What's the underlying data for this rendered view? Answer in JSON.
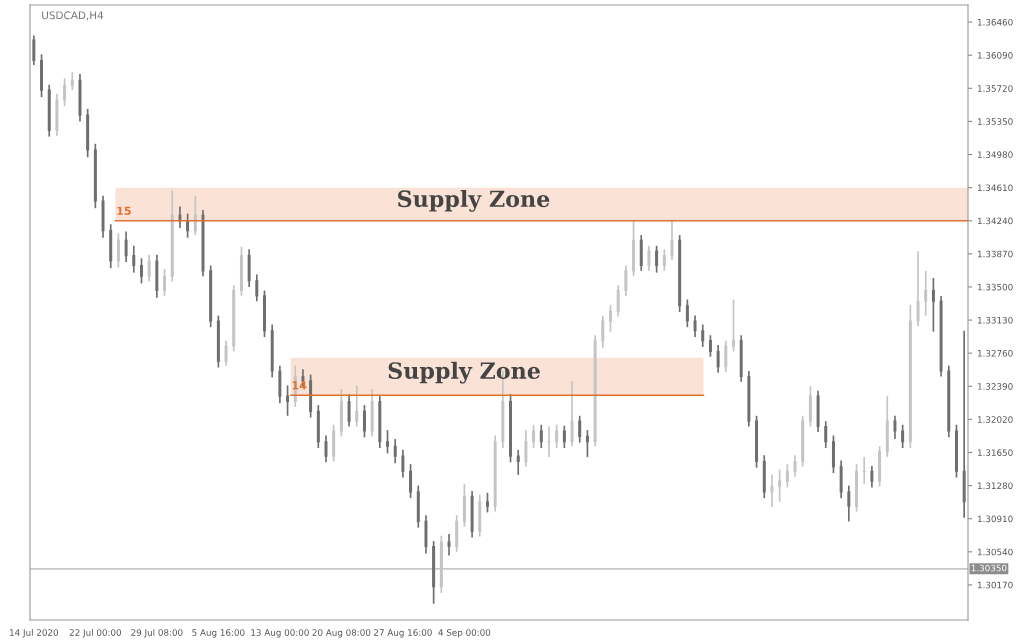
{
  "chart_data": {
    "type": "candlestick",
    "title": "USDCAD,H4",
    "categories": [
      "14 Jul 2020",
      null,
      null,
      null,
      null,
      null,
      null,
      null,
      "22 Jul 00:00",
      null,
      null,
      null,
      null,
      null,
      null,
      null,
      "29 Jul 08:00",
      null,
      null,
      null,
      null,
      null,
      null,
      null,
      "5 Aug 16:00",
      null,
      null,
      null,
      null,
      null,
      null,
      null,
      "13 Aug 00:00",
      null,
      null,
      null,
      null,
      null,
      null,
      null,
      "20 Aug 08:00",
      null,
      null,
      null,
      null,
      null,
      null,
      null,
      "27 Aug 16:00",
      null,
      null,
      null,
      null,
      null,
      null,
      null,
      "4 Sep 00:00",
      null,
      null,
      null,
      null,
      null,
      null,
      null,
      null,
      null,
      null,
      null,
      null,
      null,
      null,
      null,
      null,
      null,
      null,
      null,
      null,
      null,
      null,
      null,
      null,
      null,
      null,
      null,
      null,
      null,
      null,
      null,
      null,
      null,
      null,
      null,
      null,
      null,
      null,
      null,
      null,
      null,
      null,
      null,
      null,
      null,
      null,
      null,
      null,
      null,
      null,
      null,
      null,
      null,
      null,
      null,
      null,
      null,
      null,
      null,
      null,
      null,
      null,
      null,
      null,
      null
    ],
    "ohlc": [
      [
        1.3626,
        1.3631,
        1.3598,
        1.3603
      ],
      [
        1.3603,
        1.361,
        1.3562,
        1.357
      ],
      [
        1.357,
        1.3576,
        1.3518,
        1.3525
      ],
      [
        1.3525,
        1.3566,
        1.3519,
        1.3559
      ],
      [
        1.3559,
        1.3583,
        1.3552,
        1.3575
      ],
      [
        1.3575,
        1.359,
        1.357,
        1.3581
      ],
      [
        1.3581,
        1.3588,
        1.3535,
        1.3542
      ],
      [
        1.3542,
        1.3549,
        1.3495,
        1.3503
      ],
      [
        1.3503,
        1.351,
        1.3438,
        1.3446
      ],
      [
        1.3446,
        1.3452,
        1.3405,
        1.3413
      ],
      [
        1.3413,
        1.342,
        1.3371,
        1.3379
      ],
      [
        1.3379,
        1.341,
        1.3372,
        1.3402
      ],
      [
        1.3402,
        1.3412,
        1.3378,
        1.3385
      ],
      [
        1.3385,
        1.3396,
        1.3366,
        1.3374
      ],
      [
        1.3374,
        1.3382,
        1.3354,
        1.3362
      ],
      [
        1.3362,
        1.3386,
        1.3356,
        1.3379
      ],
      [
        1.3379,
        1.3386,
        1.3338,
        1.3346
      ],
      [
        1.3346,
        1.337,
        1.334,
        1.3362
      ],
      [
        1.3362,
        1.3458,
        1.3356,
        1.343
      ],
      [
        1.343,
        1.344,
        1.3416,
        1.3424
      ],
      [
        1.3424,
        1.3432,
        1.3405,
        1.3413
      ],
      [
        1.3413,
        1.3452,
        1.3408,
        1.343
      ],
      [
        1.343,
        1.3436,
        1.3362,
        1.3368
      ],
      [
        1.3368,
        1.3374,
        1.3305,
        1.3312
      ],
      [
        1.3312,
        1.3318,
        1.326,
        1.3267
      ],
      [
        1.3267,
        1.329,
        1.3262,
        1.3284
      ],
      [
        1.3284,
        1.3352,
        1.3278,
        1.3346
      ],
      [
        1.3346,
        1.3395,
        1.334,
        1.3385
      ],
      [
        1.3385,
        1.3392,
        1.335,
        1.3357
      ],
      [
        1.3357,
        1.3364,
        1.3334,
        1.334
      ],
      [
        1.334,
        1.3346,
        1.3294,
        1.3301
      ],
      [
        1.3301,
        1.3308,
        1.3249,
        1.3256
      ],
      [
        1.3256,
        1.3262,
        1.322,
        1.3228
      ],
      [
        1.3228,
        1.324,
        1.3206,
        1.3222
      ],
      [
        1.3222,
        1.3262,
        1.3216,
        1.325
      ],
      [
        1.325,
        1.3258,
        1.3238,
        1.3245
      ],
      [
        1.3245,
        1.3252,
        1.3204,
        1.3211
      ],
      [
        1.3211,
        1.3218,
        1.317,
        1.3177
      ],
      [
        1.3177,
        1.3184,
        1.3154,
        1.3161
      ],
      [
        1.3161,
        1.3196,
        1.3155,
        1.3189
      ],
      [
        1.3189,
        1.3236,
        1.3183,
        1.3222
      ],
      [
        1.3222,
        1.323,
        1.3194,
        1.32
      ],
      [
        1.32,
        1.324,
        1.3194,
        1.3211
      ],
      [
        1.3211,
        1.3218,
        1.3182,
        1.3189
      ],
      [
        1.3189,
        1.3236,
        1.3183,
        1.3222
      ],
      [
        1.3222,
        1.3228,
        1.317,
        1.3177
      ],
      [
        1.3177,
        1.319,
        1.3164,
        1.3172
      ],
      [
        1.3172,
        1.318,
        1.3153,
        1.3161
      ],
      [
        1.3161,
        1.3168,
        1.3137,
        1.3144
      ],
      [
        1.3144,
        1.3152,
        1.3114,
        1.3121
      ],
      [
        1.3121,
        1.3128,
        1.3081,
        1.3088
      ],
      [
        1.3088,
        1.3095,
        1.3052,
        1.306
      ],
      [
        1.306,
        1.3066,
        1.2996,
        1.3015
      ],
      [
        1.3015,
        1.3072,
        1.3008,
        1.3065
      ],
      [
        1.3065,
        1.3074,
        1.305,
        1.306
      ],
      [
        1.306,
        1.3095,
        1.3054,
        1.3088
      ],
      [
        1.3088,
        1.313,
        1.3082,
        1.3116
      ],
      [
        1.3116,
        1.3122,
        1.307,
        1.3077
      ],
      [
        1.3077,
        1.3118,
        1.3071,
        1.311
      ],
      [
        1.311,
        1.312,
        1.3098,
        1.3105
      ],
      [
        1.3105,
        1.3184,
        1.3099,
        1.3177
      ],
      [
        1.3177,
        1.3256,
        1.317,
        1.3222
      ],
      [
        1.3222,
        1.323,
        1.3154,
        1.3161
      ],
      [
        1.3161,
        1.3168,
        1.314,
        1.3155
      ],
      [
        1.3155,
        1.319,
        1.3149,
        1.3177
      ],
      [
        1.3177,
        1.3196,
        1.317,
        1.3189
      ],
      [
        1.3189,
        1.3196,
        1.317,
        1.3177
      ],
      [
        1.3177,
        1.3194,
        1.316,
        1.3177
      ],
      [
        1.3177,
        1.3196,
        1.317,
        1.3189
      ],
      [
        1.3189,
        1.3195,
        1.317,
        1.3177
      ],
      [
        1.3177,
        1.3245,
        1.3172,
        1.32
      ],
      [
        1.32,
        1.3206,
        1.3176,
        1.3183
      ],
      [
        1.3183,
        1.319,
        1.316,
        1.3177
      ],
      [
        1.3177,
        1.3296,
        1.3172,
        1.329
      ],
      [
        1.329,
        1.3318,
        1.3282,
        1.3312
      ],
      [
        1.3312,
        1.333,
        1.33,
        1.3323
      ],
      [
        1.3323,
        1.3352,
        1.3317,
        1.3346
      ],
      [
        1.3346,
        1.3374,
        1.334,
        1.3368
      ],
      [
        1.3368,
        1.3424,
        1.3362,
        1.3402
      ],
      [
        1.3402,
        1.3408,
        1.3368,
        1.3374
      ],
      [
        1.3374,
        1.3396,
        1.3368,
        1.339
      ],
      [
        1.339,
        1.3396,
        1.3366,
        1.3374
      ],
      [
        1.3374,
        1.3392,
        1.3368,
        1.3385
      ],
      [
        1.3385,
        1.3424,
        1.338,
        1.3402
      ],
      [
        1.3402,
        1.3408,
        1.3322,
        1.3329
      ],
      [
        1.3329,
        1.3336,
        1.3305,
        1.3312
      ],
      [
        1.3312,
        1.3318,
        1.3294,
        1.3301
      ],
      [
        1.3301,
        1.3308,
        1.3283,
        1.329
      ],
      [
        1.329,
        1.3296,
        1.3272,
        1.3278
      ],
      [
        1.3278,
        1.3285,
        1.3254,
        1.3261
      ],
      [
        1.3261,
        1.329,
        1.3255,
        1.3284
      ],
      [
        1.3284,
        1.3336,
        1.3278,
        1.329
      ],
      [
        1.329,
        1.3296,
        1.3244,
        1.325
      ],
      [
        1.325,
        1.3256,
        1.3194,
        1.32
      ],
      [
        1.32,
        1.3206,
        1.3148,
        1.3155
      ],
      [
        1.3155,
        1.3162,
        1.3114,
        1.3121
      ],
      [
        1.3121,
        1.314,
        1.3104,
        1.3127
      ],
      [
        1.3127,
        1.3146,
        1.311,
        1.3133
      ],
      [
        1.3133,
        1.3152,
        1.3126,
        1.3144
      ],
      [
        1.3144,
        1.3162,
        1.3138,
        1.3155
      ],
      [
        1.3155,
        1.3206,
        1.3149,
        1.32
      ],
      [
        1.32,
        1.3239,
        1.3194,
        1.3228
      ],
      [
        1.3228,
        1.3234,
        1.3188,
        1.3194
      ],
      [
        1.3194,
        1.32,
        1.317,
        1.3177
      ],
      [
        1.3177,
        1.3184,
        1.3142,
        1.3149
      ],
      [
        1.3149,
        1.3156,
        1.3114,
        1.3121
      ],
      [
        1.3121,
        1.3128,
        1.3088,
        1.3105
      ],
      [
        1.3105,
        1.3152,
        1.3099,
        1.3144
      ],
      [
        1.3144,
        1.316,
        1.313,
        1.3144
      ],
      [
        1.3144,
        1.315,
        1.3126,
        1.3133
      ],
      [
        1.3133,
        1.3172,
        1.3127,
        1.3166
      ],
      [
        1.3166,
        1.3228,
        1.316,
        1.32
      ],
      [
        1.32,
        1.3206,
        1.318,
        1.3189
      ],
      [
        1.3189,
        1.3196,
        1.317,
        1.3177
      ],
      [
        1.3177,
        1.333,
        1.317,
        1.3312
      ],
      [
        1.3312,
        1.339,
        1.3306,
        1.3334
      ],
      [
        1.3334,
        1.3368,
        1.3318,
        1.3346
      ],
      [
        1.3346,
        1.336,
        1.33,
        1.3334
      ],
      [
        1.3334,
        1.334,
        1.325,
        1.3256
      ],
      [
        1.3256,
        1.3262,
        1.3182,
        1.3189
      ],
      [
        1.3189,
        1.3196,
        1.3137,
        1.3144
      ],
      [
        1.3144,
        1.3301,
        1.3092,
        1.311
      ]
    ],
    "colors": [
      "#6e6e6e",
      "#6e6e6e",
      "#6e6e6e",
      "#c4c4c4",
      "#c4c4c4",
      "#c4c4c4",
      "#6e6e6e",
      "#6e6e6e",
      "#6e6e6e",
      "#6e6e6e",
      "#6e6e6e",
      "#c4c4c4",
      "#6e6e6e",
      "#6e6e6e",
      "#6e6e6e",
      "#c4c4c4",
      "#6e6e6e",
      "#c4c4c4",
      "#c4c4c4",
      "#6e6e6e",
      "#6e6e6e",
      "#c4c4c4",
      "#6e6e6e",
      "#6e6e6e",
      "#6e6e6e",
      "#c4c4c4",
      "#c4c4c4",
      "#c4c4c4",
      "#6e6e6e",
      "#6e6e6e",
      "#6e6e6e",
      "#6e6e6e",
      "#6e6e6e",
      "#6e6e6e",
      "#c4c4c4",
      "#6e6e6e",
      "#6e6e6e",
      "#6e6e6e",
      "#6e6e6e",
      "#c4c4c4",
      "#c4c4c4",
      "#6e6e6e",
      "#c4c4c4",
      "#6e6e6e",
      "#c4c4c4",
      "#6e6e6e",
      "#6e6e6e",
      "#6e6e6e",
      "#6e6e6e",
      "#6e6e6e",
      "#6e6e6e",
      "#6e6e6e",
      "#6e6e6e",
      "#c4c4c4",
      "#6e6e6e",
      "#c4c4c4",
      "#c4c4c4",
      "#6e6e6e",
      "#c4c4c4",
      "#6e6e6e",
      "#c4c4c4",
      "#c4c4c4",
      "#6e6e6e",
      "#6e6e6e",
      "#c4c4c4",
      "#c4c4c4",
      "#6e6e6e",
      "#c4c4c4",
      "#c4c4c4",
      "#6e6e6e",
      "#c4c4c4",
      "#6e6e6e",
      "#6e6e6e",
      "#c4c4c4",
      "#c4c4c4",
      "#c4c4c4",
      "#c4c4c4",
      "#c4c4c4",
      "#c4c4c4",
      "#6e6e6e",
      "#c4c4c4",
      "#6e6e6e",
      "#c4c4c4",
      "#c4c4c4",
      "#6e6e6e",
      "#6e6e6e",
      "#6e6e6e",
      "#6e6e6e",
      "#6e6e6e",
      "#6e6e6e",
      "#c4c4c4",
      "#c4c4c4",
      "#6e6e6e",
      "#6e6e6e",
      "#6e6e6e",
      "#6e6e6e",
      "#c4c4c4",
      "#c4c4c4",
      "#c4c4c4",
      "#c4c4c4",
      "#c4c4c4",
      "#c4c4c4",
      "#6e6e6e",
      "#6e6e6e",
      "#6e6e6e",
      "#6e6e6e",
      "#6e6e6e",
      "#c4c4c4",
      "#c4c4c4",
      "#6e6e6e",
      "#c4c4c4",
      "#c4c4c4",
      "#6e6e6e",
      "#6e6e6e",
      "#c4c4c4",
      "#c4c4c4",
      "#c4c4c4",
      "#6e6e6e",
      "#6e6e6e",
      "#6e6e6e",
      "#6e6e6e",
      "#6e6e6e"
    ],
    "annotations": [
      "15",
      "14"
    ],
    "ylim": [
      1.29778,
      1.36651
    ],
    "yticks": [
      {
        "value": 1.3646,
        "label": "1.36460"
      },
      {
        "value": 1.3609,
        "label": "1.36090"
      },
      {
        "value": 1.3572,
        "label": "1.35720"
      },
      {
        "value": 1.3535,
        "label": "1.35350"
      },
      {
        "value": 1.3498,
        "label": "1.34980"
      },
      {
        "value": 1.3461,
        "label": "1.34610"
      },
      {
        "value": 1.3424,
        "label": "1.34240"
      },
      {
        "value": 1.3387,
        "label": "1.33870"
      },
      {
        "value": 1.335,
        "label": "1.33500"
      },
      {
        "value": 1.3313,
        "label": "1.33130"
      },
      {
        "value": 1.3276,
        "label": "1.32760"
      },
      {
        "value": 1.3239,
        "label": "1.32390"
      },
      {
        "value": 1.3202,
        "label": "1.32020"
      },
      {
        "value": 1.3165,
        "label": "1.31650"
      },
      {
        "value": 1.3128,
        "label": "1.31280"
      },
      {
        "value": 1.3091,
        "label": "1.30910"
      },
      {
        "value": 1.3054,
        "label": "1.30540"
      },
      {
        "value": 1.3017,
        "label": "1.30170"
      }
    ],
    "bands": [
      {
        "axis": "y",
        "from": 1.3424,
        "to": 1.3461,
        "label": "Supply Zone",
        "color": "#fbe2d6"
      },
      {
        "axis": "y",
        "from": 1.3229,
        "to": 1.3271,
        "label": "Supply Zone",
        "color": "#fbe2d6"
      }
    ],
    "ref_lines": [
      {
        "axis": "y",
        "value": 1.3424,
        "color": "#e07030"
      },
      {
        "axis": "y",
        "value": 1.3229,
        "color": "#e07030"
      },
      {
        "axis": "y",
        "value": 1.3035,
        "label": "1.30350",
        "color": "#c8c8c8"
      }
    ],
    "grid": false
  }
}
